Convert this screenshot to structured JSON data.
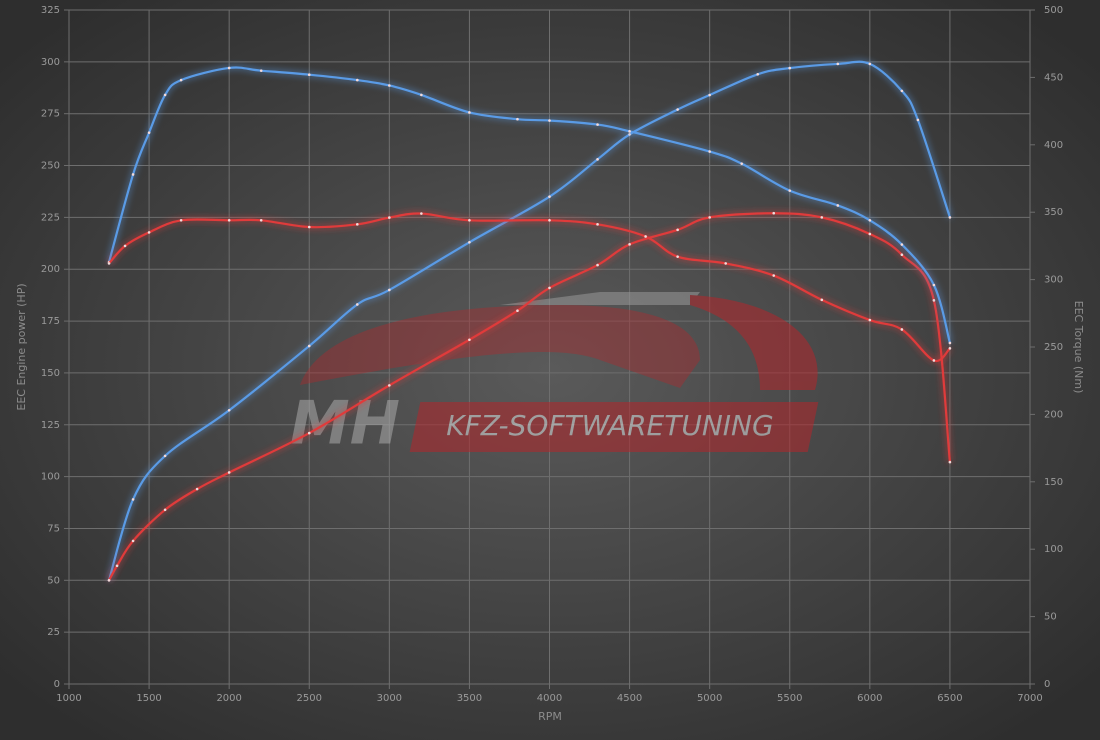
{
  "chart_data": {
    "type": "line",
    "watermark": [
      "MH",
      "KFZ-SOFTWARETUNING"
    ],
    "x_label": "RPM",
    "y_label": "EEC Engine power (HP)",
    "y2_label": "EEC Torque (Nm)",
    "xlim": [
      1000,
      7000
    ],
    "xticks": [
      1000,
      1500,
      2000,
      2500,
      3000,
      3500,
      4000,
      4500,
      5000,
      5500,
      6000,
      6500,
      7000
    ],
    "ylim": [
      0,
      325
    ],
    "yticks": [
      0,
      25,
      50,
      75,
      100,
      125,
      150,
      175,
      200,
      225,
      250,
      275,
      300,
      325
    ],
    "y2lim": [
      0,
      500
    ],
    "y2ticks": [
      0,
      50,
      100,
      150,
      200,
      250,
      300,
      350,
      400,
      450,
      500
    ],
    "grid": true,
    "series": [
      {
        "color": "#5a9be6",
        "axis": "y",
        "x": [
          1250,
          1400,
          1600,
          2000,
          2500,
          2800,
          3000,
          3500,
          4000,
          4300,
          4500,
          4800,
          5000,
          5300,
          5500,
          5800,
          6000,
          6200,
          6300,
          6500
        ],
        "values": [
          50,
          89,
          110,
          132,
          163,
          183,
          190,
          213,
          235,
          253,
          265,
          277,
          284,
          294,
          297,
          299,
          299,
          286,
          272,
          225
        ]
      },
      {
        "color": "#e03a3a",
        "axis": "y",
        "x": [
          1250,
          1300,
          1400,
          1600,
          1800,
          2000,
          2500,
          3000,
          3500,
          3800,
          4000,
          4300,
          4500,
          4800,
          5000,
          5400,
          5700,
          6000,
          6200,
          6400,
          6500
        ],
        "values": [
          50,
          57,
          69,
          84,
          94,
          102,
          121,
          144,
          166,
          180,
          191,
          202,
          212,
          219,
          225,
          227,
          225,
          217,
          207,
          185,
          107
        ]
      },
      {
        "color": "#5a9be6",
        "axis": "y2",
        "x": [
          1250,
          1400,
          1500,
          1600,
          1700,
          2000,
          2200,
          2500,
          2800,
          3000,
          3200,
          3500,
          3800,
          4000,
          4300,
          4500,
          5000,
          5200,
          5500,
          5800,
          6000,
          6200,
          6400,
          6500
        ],
        "values": [
          313,
          378,
          409,
          437,
          448,
          457,
          455,
          452,
          448,
          444,
          437,
          424,
          419,
          418,
          415,
          410,
          395,
          386,
          366,
          355,
          344,
          326,
          296,
          253
        ]
      },
      {
        "color": "#e03a3a",
        "axis": "y2",
        "x": [
          1250,
          1350,
          1500,
          1700,
          2000,
          2200,
          2500,
          2800,
          3000,
          3200,
          3500,
          4000,
          4300,
          4600,
          4800,
          5100,
          5400,
          5700,
          6000,
          6200,
          6400,
          6500
        ],
        "values": [
          312,
          325,
          335,
          344,
          344,
          344,
          339,
          341,
          346,
          349,
          344,
          344,
          341,
          332,
          317,
          312,
          303,
          285,
          270,
          263,
          240,
          249
        ]
      }
    ]
  }
}
